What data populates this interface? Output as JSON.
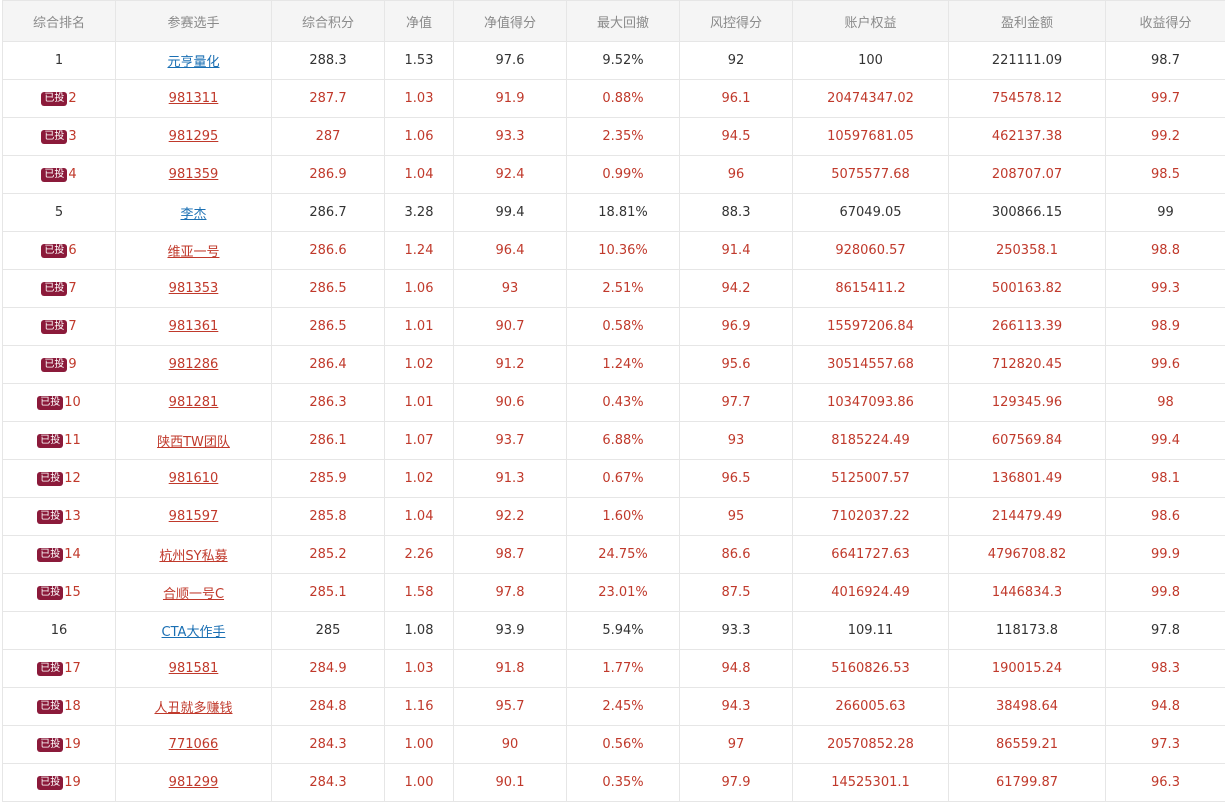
{
  "colors": {
    "header_bg": "#f5f5f5",
    "header_text": "#8a8a8a",
    "invested_text": "#c0392b",
    "link_blue": "#1a6fb3",
    "badge_bg": "#8b1a3a"
  },
  "header": [
    "综合排名",
    "参赛选手",
    "综合积分",
    "净值",
    "净值得分",
    "最大回撤",
    "风控得分",
    "账户权益",
    "盈利金额",
    "收益得分"
  ],
  "badge_label": "已投",
  "rows": [
    {
      "invested": false,
      "cells": [
        "1",
        "元亨量化",
        "288.3",
        "1.53",
        "97.6",
        "9.52%",
        "92",
        "100",
        "221111.09",
        "98.7"
      ]
    },
    {
      "invested": true,
      "cells": [
        "2",
        "981311",
        "287.7",
        "1.03",
        "91.9",
        "0.88%",
        "96.1",
        "20474347.02",
        "754578.12",
        "99.7"
      ]
    },
    {
      "invested": true,
      "cells": [
        "3",
        "981295",
        "287",
        "1.06",
        "93.3",
        "2.35%",
        "94.5",
        "10597681.05",
        "462137.38",
        "99.2"
      ]
    },
    {
      "invested": true,
      "cells": [
        "4",
        "981359",
        "286.9",
        "1.04",
        "92.4",
        "0.99%",
        "96",
        "5075577.68",
        "208707.07",
        "98.5"
      ]
    },
    {
      "invested": false,
      "cells": [
        "5",
        "李杰",
        "286.7",
        "3.28",
        "99.4",
        "18.81%",
        "88.3",
        "67049.05",
        "300866.15",
        "99"
      ]
    },
    {
      "invested": true,
      "cells": [
        "6",
        "维亚一号",
        "286.6",
        "1.24",
        "96.4",
        "10.36%",
        "91.4",
        "928060.57",
        "250358.1",
        "98.8"
      ]
    },
    {
      "invested": true,
      "cells": [
        "7",
        "981353",
        "286.5",
        "1.06",
        "93",
        "2.51%",
        "94.2",
        "8615411.2",
        "500163.82",
        "99.3"
      ]
    },
    {
      "invested": true,
      "cells": [
        "7",
        "981361",
        "286.5",
        "1.01",
        "90.7",
        "0.58%",
        "96.9",
        "15597206.84",
        "266113.39",
        "98.9"
      ]
    },
    {
      "invested": true,
      "cells": [
        "9",
        "981286",
        "286.4",
        "1.02",
        "91.2",
        "1.24%",
        "95.6",
        "30514557.68",
        "712820.45",
        "99.6"
      ]
    },
    {
      "invested": true,
      "cells": [
        "10",
        "981281",
        "286.3",
        "1.01",
        "90.6",
        "0.43%",
        "97.7",
        "10347093.86",
        "129345.96",
        "98"
      ]
    },
    {
      "invested": true,
      "cells": [
        "11",
        "陕西TW团队",
        "286.1",
        "1.07",
        "93.7",
        "6.88%",
        "93",
        "8185224.49",
        "607569.84",
        "99.4"
      ]
    },
    {
      "invested": true,
      "cells": [
        "12",
        "981610",
        "285.9",
        "1.02",
        "91.3",
        "0.67%",
        "96.5",
        "5125007.57",
        "136801.49",
        "98.1"
      ]
    },
    {
      "invested": true,
      "cells": [
        "13",
        "981597",
        "285.8",
        "1.04",
        "92.2",
        "1.60%",
        "95",
        "7102037.22",
        "214479.49",
        "98.6"
      ]
    },
    {
      "invested": true,
      "cells": [
        "14",
        "杭州SY私募",
        "285.2",
        "2.26",
        "98.7",
        "24.75%",
        "86.6",
        "6641727.63",
        "4796708.82",
        "99.9"
      ]
    },
    {
      "invested": true,
      "cells": [
        "15",
        "合顺一号C",
        "285.1",
        "1.58",
        "97.8",
        "23.01%",
        "87.5",
        "4016924.49",
        "1446834.3",
        "99.8"
      ]
    },
    {
      "invested": false,
      "cells": [
        "16",
        "CTA大作手",
        "285",
        "1.08",
        "93.9",
        "5.94%",
        "93.3",
        "109.11",
        "118173.8",
        "97.8"
      ]
    },
    {
      "invested": true,
      "cells": [
        "17",
        "981581",
        "284.9",
        "1.03",
        "91.8",
        "1.77%",
        "94.8",
        "5160826.53",
        "190015.24",
        "98.3"
      ]
    },
    {
      "invested": true,
      "cells": [
        "18",
        "人丑就多赚钱",
        "284.8",
        "1.16",
        "95.7",
        "2.45%",
        "94.3",
        "266005.63",
        "38498.64",
        "94.8"
      ]
    },
    {
      "invested": true,
      "cells": [
        "19",
        "771066",
        "284.3",
        "1.00",
        "90",
        "0.56%",
        "97",
        "20570852.28",
        "86559.21",
        "97.3"
      ]
    },
    {
      "invested": true,
      "cells": [
        "19",
        "981299",
        "284.3",
        "1.00",
        "90.1",
        "0.35%",
        "97.9",
        "14525301.1",
        "61799.87",
        "96.3"
      ]
    }
  ]
}
